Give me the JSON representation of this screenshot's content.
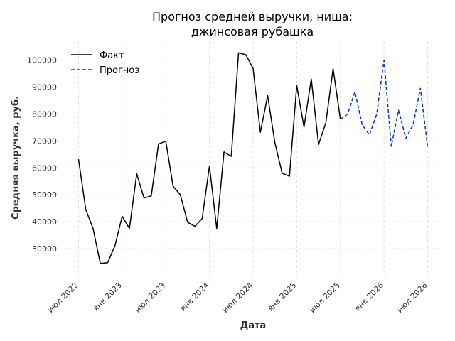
{
  "chart_data": {
    "type": "line",
    "title_lines": [
      "Прогноз средней выручки, ниша:",
      "джинсовая рубашка"
    ],
    "xlabel": "Дата",
    "ylabel": "Средняя выручка, руб.",
    "x_ticks": [
      "июл 2022",
      "янв 2023",
      "июл 2023",
      "янв 2024",
      "июл 2024",
      "янв 2025",
      "июл 2025",
      "янв 2026",
      "июл 2026"
    ],
    "y_ticks": [
      30000,
      40000,
      50000,
      60000,
      70000,
      80000,
      90000,
      100000
    ],
    "ylim": [
      20000,
      107000
    ],
    "x_range": [
      "2022-05",
      "2026-09"
    ],
    "grid": true,
    "legend_position": "top-left",
    "series": [
      {
        "name": "Факт",
        "color": "#000000",
        "dash": "solid",
        "points": [
          [
            "2022-07",
            63200
          ],
          [
            "2022-08",
            44500
          ],
          [
            "2022-09",
            37500
          ],
          [
            "2022-10",
            24500
          ],
          [
            "2022-11",
            24800
          ],
          [
            "2022-12",
            31000
          ],
          [
            "2023-01",
            42000
          ],
          [
            "2023-02",
            37500
          ],
          [
            "2023-03",
            57800
          ],
          [
            "2023-04",
            48800
          ],
          [
            "2023-05",
            49600
          ],
          [
            "2023-06",
            68900
          ],
          [
            "2023-07",
            69900
          ],
          [
            "2023-08",
            53200
          ],
          [
            "2023-09",
            50000
          ],
          [
            "2023-10",
            39800
          ],
          [
            "2023-11",
            38300
          ],
          [
            "2023-12",
            41200
          ],
          [
            "2024-01",
            60700
          ],
          [
            "2024-02",
            37400
          ],
          [
            "2024-03",
            65900
          ],
          [
            "2024-04",
            64300
          ],
          [
            "2024-05",
            102700
          ],
          [
            "2024-06",
            102000
          ],
          [
            "2024-07",
            96900
          ],
          [
            "2024-08",
            73200
          ],
          [
            "2024-09",
            86800
          ],
          [
            "2024-10",
            69300
          ],
          [
            "2024-11",
            58000
          ],
          [
            "2024-12",
            56900
          ],
          [
            "2025-01",
            90600
          ],
          [
            "2025-02",
            75100
          ],
          [
            "2025-03",
            93000
          ],
          [
            "2025-04",
            68700
          ],
          [
            "2025-05",
            76700
          ],
          [
            "2025-06",
            96800
          ],
          [
            "2025-07",
            78000
          ]
        ]
      },
      {
        "name": "Прогноз",
        "color": "#0033cc",
        "dash": "dashed",
        "points": [
          [
            "2025-07",
            78000
          ],
          [
            "2025-08",
            80000
          ],
          [
            "2025-09",
            88200
          ],
          [
            "2025-10",
            76000
          ],
          [
            "2025-11",
            72200
          ],
          [
            "2025-12",
            80000
          ],
          [
            "2026-01",
            100000
          ],
          [
            "2026-02",
            68000
          ],
          [
            "2026-03",
            81400
          ],
          [
            "2026-04",
            71000
          ],
          [
            "2026-05",
            76000
          ],
          [
            "2026-06",
            89500
          ],
          [
            "2026-07",
            67800
          ]
        ]
      }
    ]
  }
}
